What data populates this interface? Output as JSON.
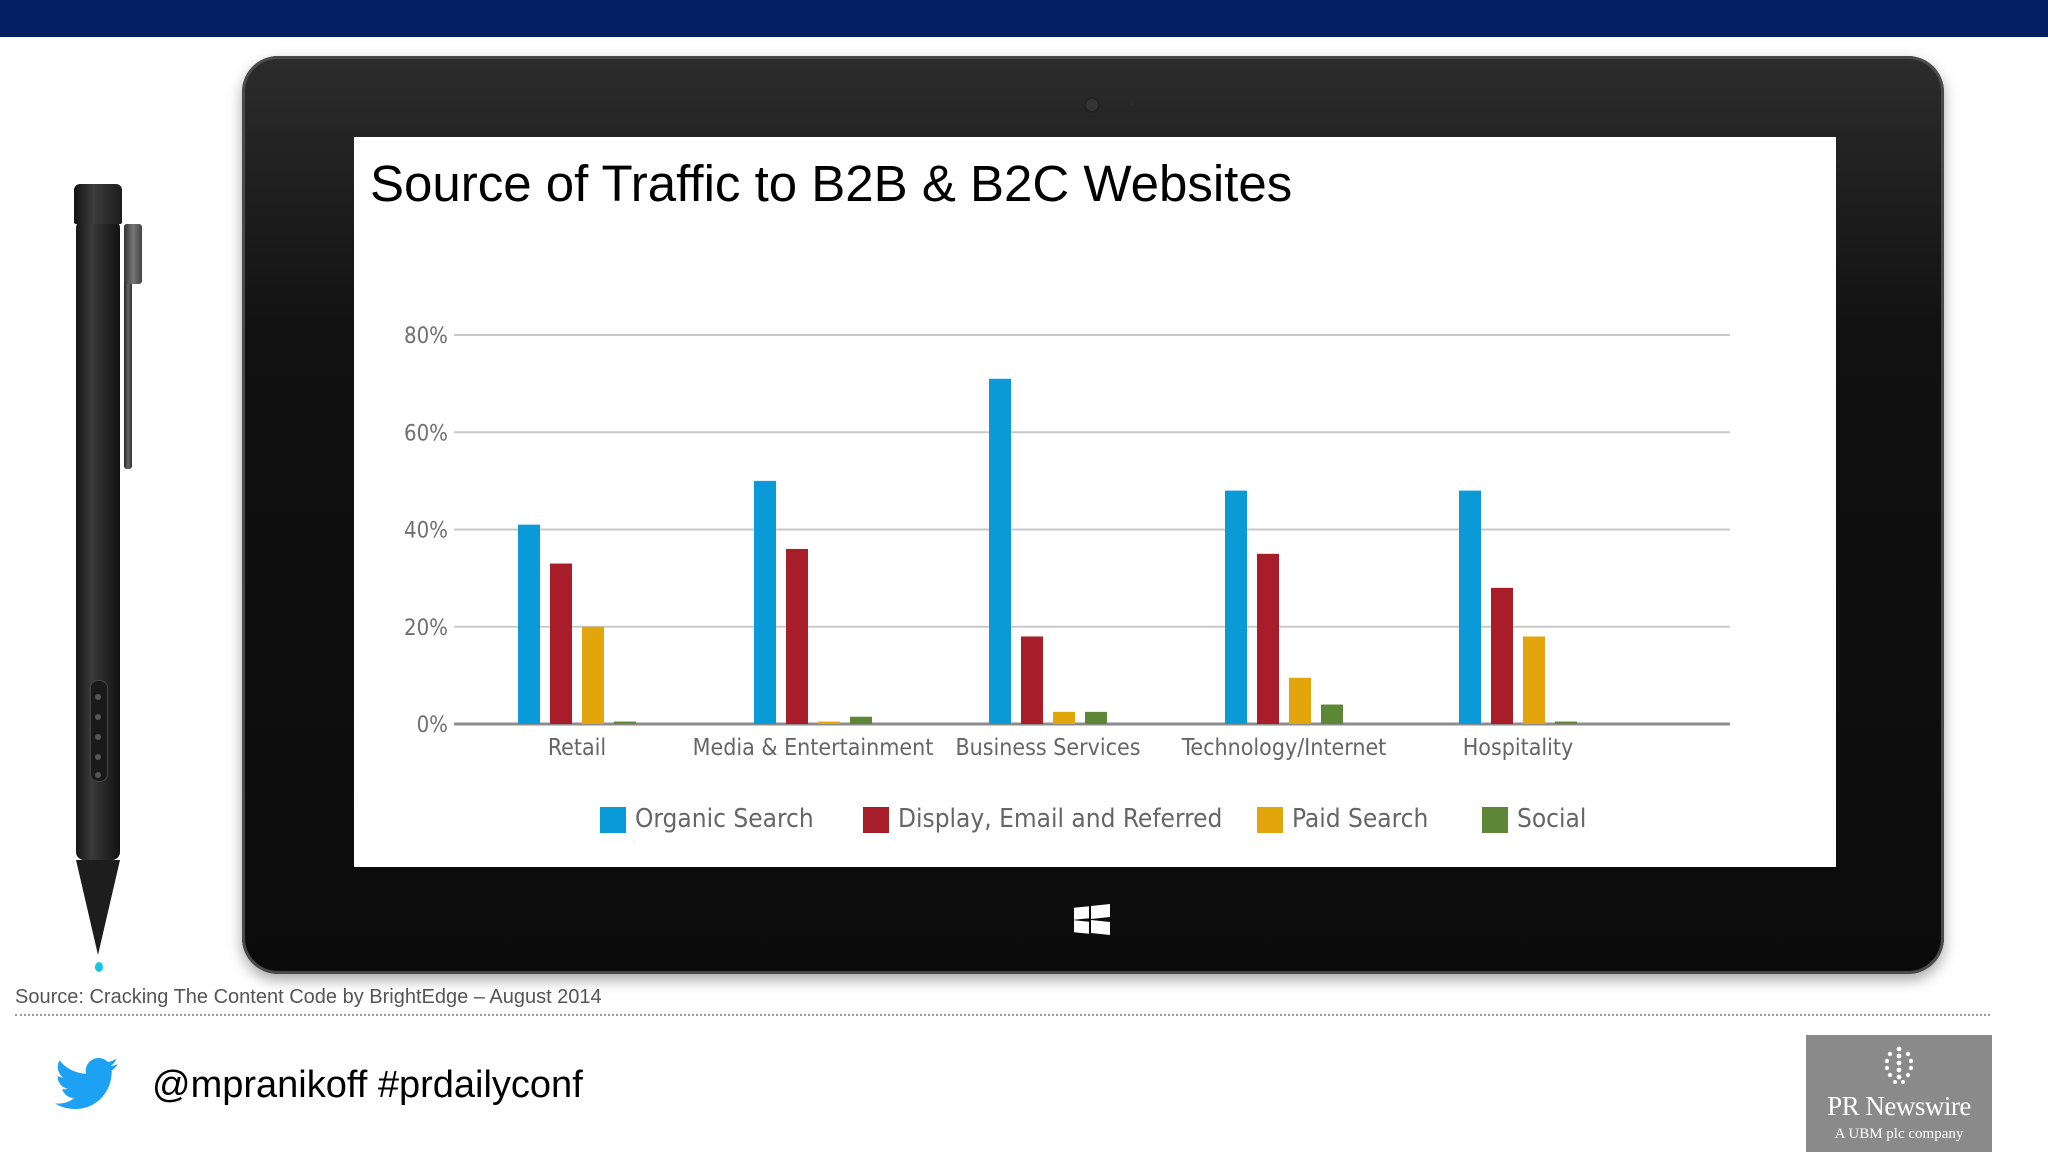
{
  "slide": {
    "source_note": "Source: Cracking The Content Code by BrightEdge – August 2014",
    "social_handle": "@mpranikoff  #prdailyconf",
    "logo_name": "PR Newswire",
    "logo_subtitle": "A UBM plc company",
    "icons": [
      "twitter-bird-icon",
      "windows-logo-icon",
      "stylus-pen",
      "pr-newswire-logo-icon"
    ]
  },
  "chart_data": {
    "type": "bar",
    "title": "Source of Traffic to B2B & B2C Websites",
    "categories": [
      "Retail",
      "Media & Entertainment",
      "Business Services",
      "Technology/Internet",
      "Hospitality"
    ],
    "series": [
      {
        "name": "Organic Search",
        "color": "#0a9ad8",
        "values": [
          41,
          50,
          71,
          48,
          48
        ]
      },
      {
        "name": "Display, Email and Referred",
        "color": "#a71d2a",
        "values": [
          33,
          36,
          18,
          35,
          28
        ]
      },
      {
        "name": "Paid Search",
        "color": "#e2a50c",
        "values": [
          20,
          0.5,
          2.5,
          9.5,
          18
        ]
      },
      {
        "name": "Social",
        "color": "#5e8637",
        "values": [
          0.5,
          1.5,
          2.5,
          4,
          0.5
        ]
      }
    ],
    "yticks": [
      "0%",
      "20%",
      "40%",
      "60%",
      "80%"
    ],
    "ylim": [
      0,
      80
    ],
    "grid": true,
    "legend_position": "bottom"
  }
}
